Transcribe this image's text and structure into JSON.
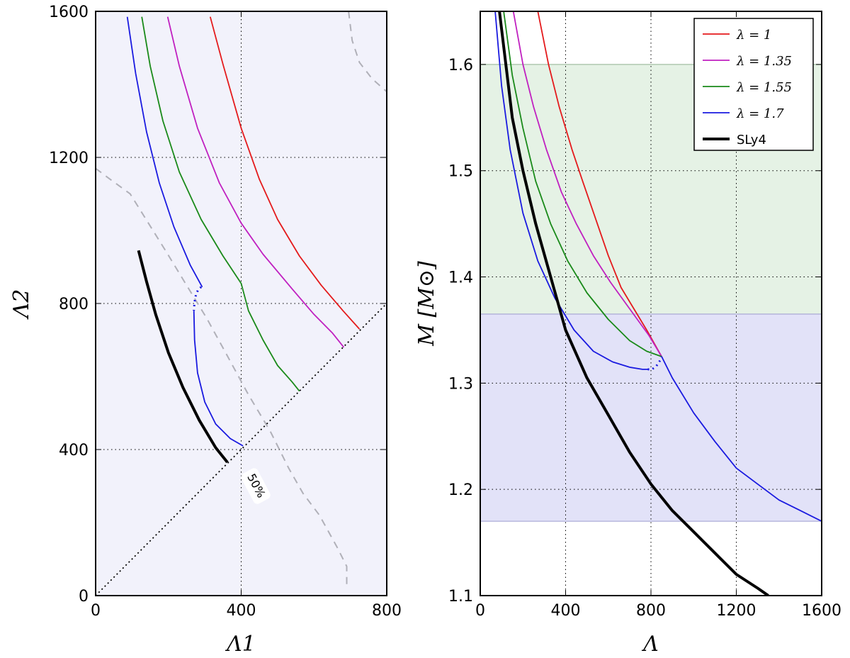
{
  "chart_data": [
    {
      "type": "line",
      "xlabel": "Λ1",
      "ylabel": "Λ2",
      "xlim": [
        0,
        800
      ],
      "ylim": [
        0,
        1600
      ],
      "xticks": [
        "0",
        "400",
        "800"
      ],
      "yticks": [
        "0",
        "400",
        "800",
        "1200",
        "1600"
      ],
      "background": "#f2f2fb",
      "contour_label": "50%",
      "series": [
        {
          "name": "λ=1",
          "color": "#e41a1c",
          "x": [
            315,
            350,
            400,
            450,
            500,
            560,
            620,
            680,
            725
          ],
          "y": [
            1585,
            1455,
            1280,
            1140,
            1030,
            930,
            850,
            780,
            730
          ]
        },
        {
          "name": "λ=1.35",
          "color": "#c020c0",
          "x": [
            198,
            230,
            280,
            340,
            400,
            460,
            540,
            600,
            650,
            682
          ],
          "y": [
            1585,
            1450,
            1280,
            1130,
            1020,
            935,
            840,
            770,
            720,
            680
          ]
        },
        {
          "name": "λ=1.55",
          "color": "#1a8a1a",
          "x": [
            127,
            150,
            185,
            230,
            290,
            350,
            400,
            420,
            460,
            500,
            540,
            560
          ],
          "y": [
            1585,
            1450,
            1300,
            1160,
            1030,
            930,
            855,
            780,
            700,
            630,
            585,
            560
          ]
        },
        {
          "name": "λ=1.7 (upper)",
          "color": "#1a1ae0",
          "x": [
            87,
            110,
            140,
            175,
            215,
            260,
            293
          ],
          "y": [
            1585,
            1430,
            1270,
            1130,
            1010,
            905,
            845
          ]
        },
        {
          "name": "λ=1.7 (lower)",
          "color": "#1a1ae0",
          "x": [
            270,
            272,
            280,
            300,
            330,
            370,
            405
          ],
          "y": [
            780,
            700,
            610,
            530,
            470,
            430,
            410
          ]
        },
        {
          "name": "SLy4",
          "color": "#000000",
          "x": [
            118,
            140,
            165,
            200,
            240,
            285,
            330,
            362
          ],
          "y": [
            945,
            860,
            770,
            665,
            570,
            480,
            405,
            365
          ]
        }
      ],
      "dotted_gaps": [
        {
          "color": "#1a1ae0",
          "x": [
            290,
            282,
            276,
            272,
            270
          ],
          "y": [
            845,
            838,
            825,
            805,
            780
          ]
        }
      ],
      "equal_line": {
        "x": [
          0,
          800
        ],
        "y": [
          0,
          800
        ]
      },
      "contour_50": [
        {
          "x": [
            0,
            40,
            95,
            145,
            195,
            250,
            305,
            360,
            420,
            480,
            530,
            570,
            615,
            665,
            690,
            690
          ],
          "y": [
            1170,
            1140,
            1100,
            1020,
            940,
            850,
            760,
            660,
            550,
            450,
            350,
            280,
            220,
            130,
            80,
            20
          ]
        },
        {
          "x": [
            695,
            705,
            725,
            760,
            800
          ],
          "y": [
            1600,
            1520,
            1460,
            1415,
            1380
          ]
        }
      ]
    },
    {
      "type": "line",
      "xlabel": "Λ",
      "ylabel": "M [M⊙]",
      "xlim": [
        0,
        1600
      ],
      "ylim": [
        1.1,
        1.65
      ],
      "xticks": [
        "0",
        "400",
        "800",
        "1200",
        "1600"
      ],
      "yticks": [
        "1.1",
        "1.2",
        "1.3",
        "1.4",
        "1.5",
        "1.6"
      ],
      "bands": [
        {
          "label": "green band",
          "color": "#e5f2e5",
          "edge": "#b0c8b0",
          "ymin": 1.365,
          "ymax": 1.6
        },
        {
          "label": "blue band",
          "color": "#e2e2f8",
          "edge": "#b8b8de",
          "ymin": 1.17,
          "ymax": 1.365
        }
      ],
      "legend": [
        "λ = 1",
        "λ = 1.35",
        "λ = 1.55",
        "λ = 1.7",
        "SLy4"
      ],
      "series": [
        {
          "name": "λ = 1",
          "color": "#e41a1c",
          "x": [
            270,
            320,
            370,
            430,
            480,
            540,
            600,
            660,
            720,
            780,
            850
          ],
          "y": [
            1.65,
            1.6,
            1.56,
            1.52,
            1.49,
            1.455,
            1.42,
            1.39,
            1.37,
            1.35,
            1.325
          ]
        },
        {
          "name": "λ = 1.35",
          "color": "#c020c0",
          "x": [
            155,
            200,
            250,
            310,
            380,
            450,
            530,
            610,
            700,
            790,
            850
          ],
          "y": [
            1.65,
            1.6,
            1.56,
            1.52,
            1.48,
            1.45,
            1.42,
            1.395,
            1.37,
            1.345,
            1.325
          ]
        },
        {
          "name": "λ = 1.55",
          "color": "#1a8a1a",
          "x": [
            110,
            150,
            200,
            260,
            330,
            410,
            500,
            600,
            700,
            780,
            850
          ],
          "y": [
            1.65,
            1.59,
            1.54,
            1.49,
            1.45,
            1.415,
            1.385,
            1.36,
            1.34,
            1.33,
            1.325
          ]
        },
        {
          "name": "λ = 1.7",
          "color": "#1a1ae0",
          "x": [
            70,
            100,
            140,
            200,
            270,
            350,
            440,
            530,
            620,
            700,
            760,
            785
          ],
          "y": [
            1.65,
            1.58,
            1.52,
            1.46,
            1.415,
            1.38,
            1.35,
            1.33,
            1.32,
            1.315,
            1.313,
            1.313
          ]
        },
        {
          "name": "common",
          "color": "#1a1ae0",
          "x": [
            850,
            900,
            1000,
            1100,
            1200,
            1300,
            1400,
            1500,
            1600
          ],
          "y": [
            1.325,
            1.305,
            1.272,
            1.245,
            1.22,
            1.205,
            1.19,
            1.18,
            1.17
          ]
        },
        {
          "name": "SLy4",
          "color": "#000000",
          "x": [
            90,
            150,
            200,
            260,
            330,
            400,
            500,
            600,
            700,
            800,
            900,
            1000,
            1100,
            1200,
            1300,
            1350
          ],
          "y": [
            1.65,
            1.55,
            1.5,
            1.45,
            1.4,
            1.35,
            1.305,
            1.27,
            1.235,
            1.205,
            1.18,
            1.16,
            1.14,
            1.12,
            1.107,
            1.1
          ]
        }
      ],
      "dotted_gaps": [
        {
          "color": "#1a1ae0",
          "x": [
            785,
            805,
            825,
            845,
            850
          ],
          "y": [
            1.313,
            1.313,
            1.316,
            1.322,
            1.325
          ]
        }
      ]
    }
  ]
}
